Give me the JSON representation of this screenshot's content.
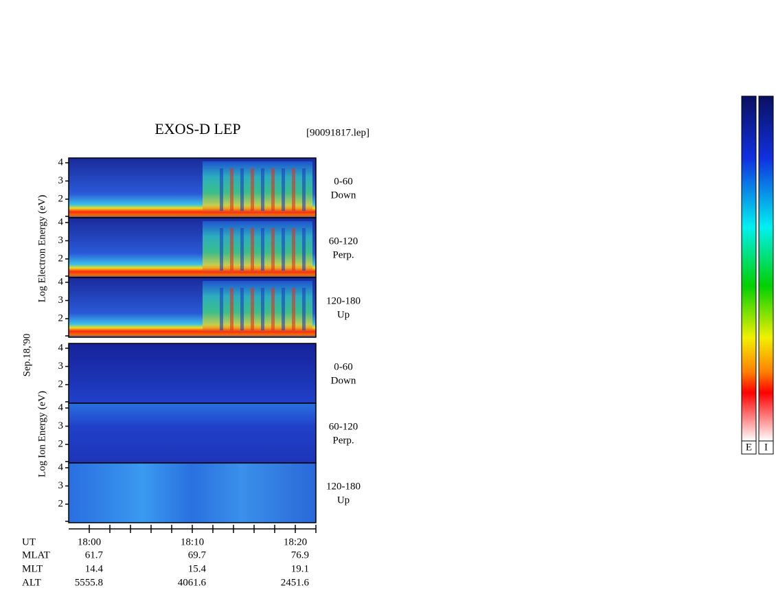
{
  "header": {
    "title": "EXOS-D LEP",
    "file": "[90091817.lep]"
  },
  "date": "Sep.18,'90",
  "electron": {
    "axis_label": "Log  Electron  Energy  (eV)",
    "panels": [
      {
        "angle": "0-60",
        "direction": "Down"
      },
      {
        "angle": "60-120",
        "direction": "Perp."
      },
      {
        "angle": "120-180",
        "direction": "Up"
      }
    ]
  },
  "ion": {
    "axis_label": "Log  Ion  Energy  (eV)",
    "panels": [
      {
        "angle": "0-60",
        "direction": "Down"
      },
      {
        "angle": "60-120",
        "direction": "Perp."
      },
      {
        "angle": "120-180",
        "direction": "Up"
      }
    ]
  },
  "yticks": [
    4,
    3,
    2
  ],
  "ephemeris": {
    "labels": [
      "UT",
      "MLAT",
      "MLT",
      "ALT"
    ],
    "columns": [
      [
        "18:00",
        61.7,
        14.4,
        5555.8
      ],
      [
        "18:10",
        69.7,
        15.4,
        4061.6
      ],
      [
        "18:20",
        76.9,
        19.1,
        2451.6
      ]
    ]
  },
  "colorbars": [
    "E",
    "I"
  ]
}
